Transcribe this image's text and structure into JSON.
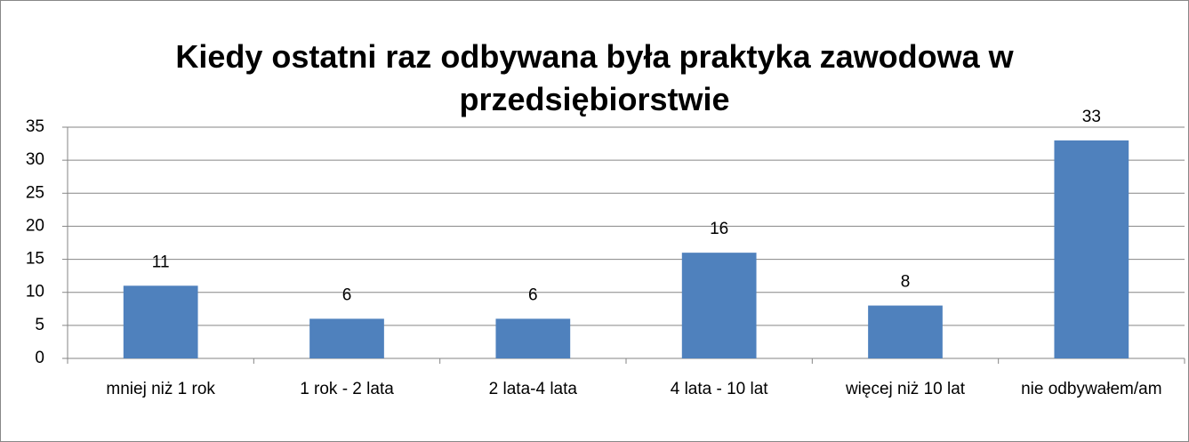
{
  "chart_data": {
    "type": "bar",
    "title": "Kiedy ostatni raz odbywana była praktyka zawodowa w przedsiębiorstwie",
    "categories": [
      "mniej niż 1 rok",
      "1 rok - 2 lata",
      "2 lata-4 lata",
      "4 lata - 10 lat",
      "więcej niż 10 lat",
      "nie odbywałem/am"
    ],
    "values": [
      11,
      6,
      6,
      16,
      8,
      33
    ],
    "color": "#4f81bd",
    "ylim": [
      0,
      35
    ],
    "yticks": [
      0,
      5,
      10,
      15,
      20,
      25,
      30,
      35
    ],
    "grid": true
  }
}
